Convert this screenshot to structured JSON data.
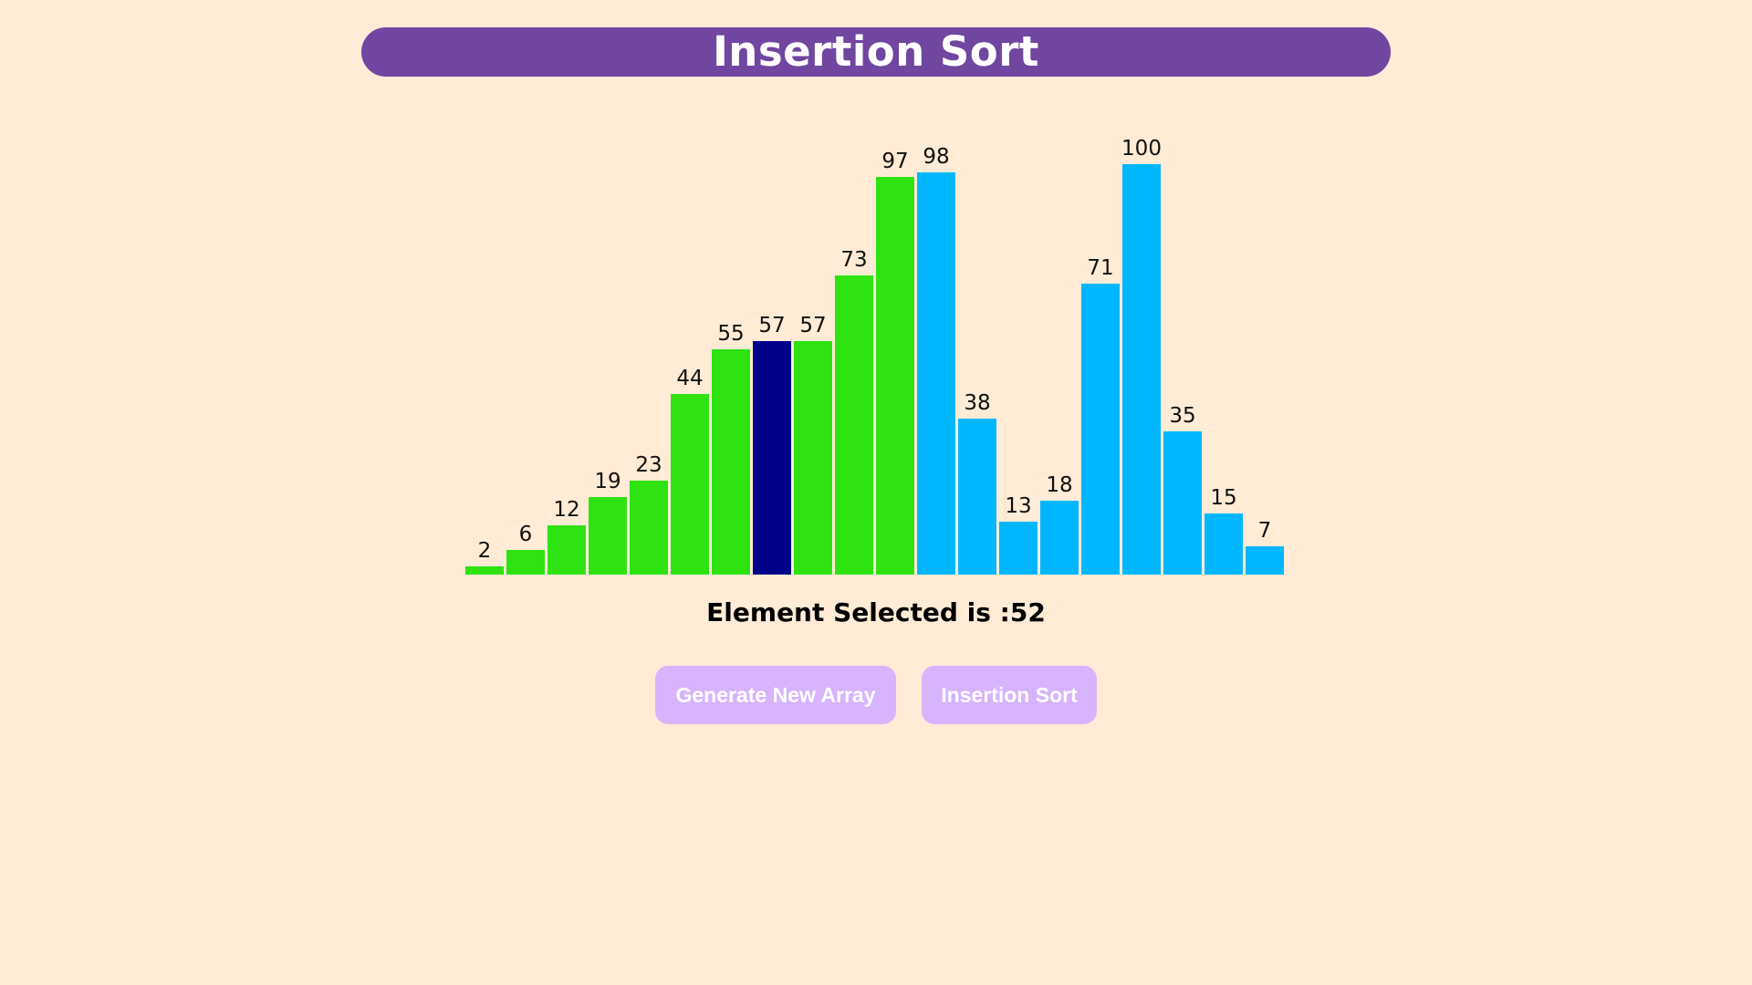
{
  "header": {
    "title": "Insertion Sort"
  },
  "chart_data": {
    "type": "bar",
    "values": [
      2,
      6,
      12,
      19,
      23,
      44,
      55,
      57,
      57,
      73,
      97,
      98,
      38,
      13,
      18,
      71,
      100,
      35,
      15,
      7
    ],
    "states": [
      "sorted",
      "sorted",
      "sorted",
      "sorted",
      "sorted",
      "sorted",
      "sorted",
      "selected",
      "sorted",
      "sorted",
      "sorted",
      "unsorted",
      "unsorted",
      "unsorted",
      "unsorted",
      "unsorted",
      "unsorted",
      "unsorted",
      "unsorted",
      "unsorted"
    ],
    "ylim": [
      0,
      100
    ]
  },
  "colors": {
    "sorted": "#2fe312",
    "selected": "#00008b",
    "unsorted": "#00b7ff"
  },
  "status": {
    "text": "Element Selected is :52"
  },
  "buttons": {
    "generate_label": "Generate New Array",
    "sort_label": "Insertion Sort"
  }
}
